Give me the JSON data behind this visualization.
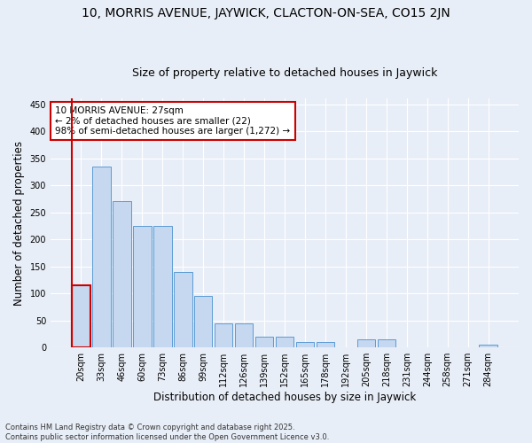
{
  "title": "10, MORRIS AVENUE, JAYWICK, CLACTON-ON-SEA, CO15 2JN",
  "subtitle": "Size of property relative to detached houses in Jaywick",
  "xlabel": "Distribution of detached houses by size in Jaywick",
  "ylabel": "Number of detached properties",
  "categories": [
    "20sqm",
    "33sqm",
    "46sqm",
    "60sqm",
    "73sqm",
    "86sqm",
    "99sqm",
    "112sqm",
    "126sqm",
    "139sqm",
    "152sqm",
    "165sqm",
    "178sqm",
    "192sqm",
    "205sqm",
    "218sqm",
    "231sqm",
    "244sqm",
    "258sqm",
    "271sqm",
    "284sqm"
  ],
  "values": [
    115,
    335,
    270,
    225,
    225,
    140,
    95,
    45,
    45,
    20,
    20,
    10,
    10,
    0,
    15,
    15,
    0,
    0,
    0,
    0,
    5
  ],
  "bar_color": "#c5d8f0",
  "bar_edge_color": "#5b9bd5",
  "highlight_bar_index": 0,
  "highlight_bar_edge_color": "#cc0000",
  "annotation_box_text": "10 MORRIS AVENUE: 27sqm\n← 2% of detached houses are smaller (22)\n98% of semi-detached houses are larger (1,272) →",
  "vline_color": "#cc0000",
  "ylim": [
    0,
    460
  ],
  "yticks": [
    0,
    50,
    100,
    150,
    200,
    250,
    300,
    350,
    400,
    450
  ],
  "background_color": "#e8eef7",
  "grid_color": "#ffffff",
  "footer_text": "Contains HM Land Registry data © Crown copyright and database right 2025.\nContains public sector information licensed under the Open Government Licence v3.0.",
  "title_fontsize": 10,
  "subtitle_fontsize": 9,
  "axis_label_fontsize": 8.5,
  "tick_fontsize": 7,
  "annotation_fontsize": 7.5,
  "footer_fontsize": 6
}
